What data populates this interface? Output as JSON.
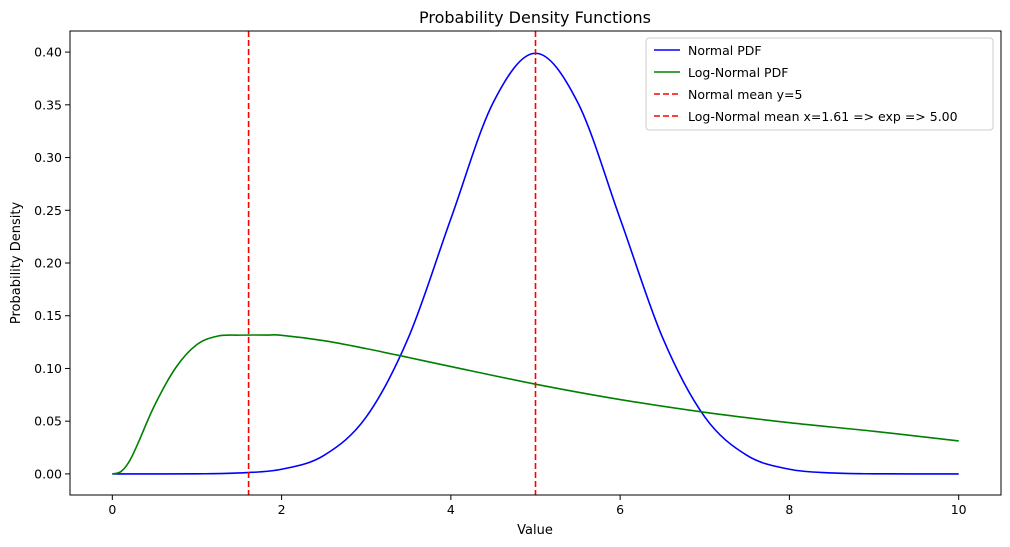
{
  "chart_data": {
    "type": "line",
    "title": "Probability Density Functions",
    "xlabel": "Value",
    "ylabel": "Probability Density",
    "xlim": [
      -0.5,
      10.5
    ],
    "ylim": [
      -0.02,
      0.42
    ],
    "xticks": [
      0,
      2,
      4,
      6,
      8,
      10
    ],
    "xtick_labels": [
      "0",
      "2",
      "4",
      "6",
      "8",
      "10"
    ],
    "yticks": [
      0.0,
      0.05,
      0.1,
      0.15,
      0.2,
      0.25,
      0.3,
      0.35,
      0.4
    ],
    "ytick_labels": [
      "0.00",
      "0.05",
      "0.10",
      "0.15",
      "0.20",
      "0.25",
      "0.30",
      "0.35",
      "0.40"
    ],
    "grid": false,
    "legend_position": "top-right",
    "series": [
      {
        "name": "Normal PDF",
        "color": "#0000ff",
        "style": "solid",
        "x": [
          0,
          1,
          1.5,
          2,
          2.5,
          3,
          3.5,
          4,
          4.5,
          5,
          5.5,
          6,
          6.5,
          7,
          7.5,
          8,
          8.5,
          9,
          10
        ],
        "y": [
          0.0,
          0.0001,
          0.0009,
          0.0044,
          0.0175,
          0.054,
          0.1295,
          0.242,
          0.3521,
          0.3989,
          0.3521,
          0.242,
          0.1295,
          0.054,
          0.0175,
          0.0044,
          0.0009,
          0.0001,
          0.0
        ]
      },
      {
        "name": "Log-Normal PDF",
        "color": "#008000",
        "style": "solid",
        "x": [
          0.0,
          0.1,
          0.2,
          0.3,
          0.5,
          0.75,
          1.0,
          1.25,
          1.5,
          1.82,
          2.0,
          2.5,
          3.0,
          3.5,
          4.0,
          5.0,
          6.0,
          7.0,
          8.0,
          9.0,
          10.0
        ],
        "y": [
          0.0,
          0.0021,
          0.0118,
          0.0284,
          0.0651,
          0.1008,
          0.1227,
          0.1308,
          0.1316,
          0.1317,
          0.1314,
          0.1263,
          0.1188,
          0.1104,
          0.1018,
          0.0851,
          0.0705,
          0.0584,
          0.0486,
          0.0404,
          0.0313
        ]
      },
      {
        "name": "Normal mean y=5",
        "color": "#ff0000",
        "style": "dashed",
        "vline_x": 5
      },
      {
        "name": "Log-Normal mean x=1.61 => exp => 5.00",
        "color": "#ff0000",
        "style": "dashed",
        "vline_x": 1.61
      }
    ]
  }
}
